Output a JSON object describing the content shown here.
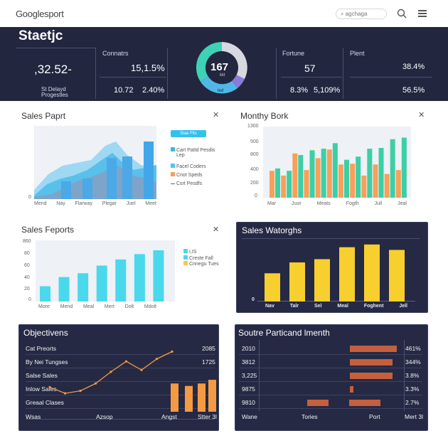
{
  "header": {
    "logo_text": "Googlesport",
    "search_placeholder": "agchaga"
  },
  "stats": {
    "title": "Staetjc",
    "value_main": ",32.52-",
    "sub_label_1": "St Delayd",
    "sub_label_2": "Progestles",
    "connats_label": "Connatrs",
    "connats_value": "15,1.5%",
    "connats_a": "10.72",
    "connats_b": "2.40%",
    "donut_value": "167",
    "donut_small": "kkt",
    "donut_inner": "ted",
    "fortune_label": "Fortune",
    "fortune_value": "57",
    "fortune_a": "8.3%",
    "fortune_b": "5,109%",
    "plent_label": "Plent",
    "plent_value": "38.4%",
    "plent_b": "56.5%"
  },
  "sales_report": {
    "title": "Sales Paprt",
    "legend_button": "Stae Flts",
    "legend": [
      {
        "label": "Cart Pattd Pesdis",
        "color": "#44b3e0"
      },
      {
        "label": "Lep",
        "color": ""
      },
      {
        "label": "Facel Coders",
        "color": "#4fc3f7"
      },
      {
        "label": "Cnot Speds",
        "color": "#f0a060"
      },
      {
        "label": "Csrt Pesdfs",
        "color": "#666666"
      }
    ],
    "x_labels": [
      "Mend",
      "Nay",
      "Flarway",
      "Plegar",
      "Juel",
      "Meet"
    ],
    "y_zero": "0"
  },
  "monthly_bork": {
    "title": "Monthy Bork",
    "y_labels": [
      "1300",
      "800",
      "500",
      "400",
      "200",
      "0"
    ],
    "x_labels": [
      "Mar",
      "Juor",
      "Meats",
      "Fogth",
      "Jull",
      "Jeal"
    ],
    "chart_data": {
      "type": "bar",
      "categories": [
        "1",
        "2",
        "3",
        "4",
        "5",
        "6",
        "7",
        "8",
        "9",
        "10",
        "11",
        "12"
      ],
      "series": [
        {
          "values": [
            340,
            280,
            560,
            350,
            500,
            610,
            420,
            430,
            280,
            420,
            300,
            350
          ]
        },
        {
          "values": [
            370,
            340,
            540,
            600,
            620,
            690,
            480,
            520,
            620,
            630,
            740,
            760
          ]
        }
      ],
      "ylim": [
        0,
        900
      ]
    }
  },
  "sales_fepotts": {
    "title": "Sales Feports",
    "y_labels": [
      "860",
      "80",
      "60",
      "40",
      "20",
      "0"
    ],
    "x_labels": [
      "More",
      "Mend",
      "Meal",
      "Mert",
      "Dolt",
      "Mdolt"
    ],
    "legend": [
      {
        "label": "I,IS",
        "color": "#4ad8ec"
      },
      {
        "label": "Creste Fall",
        "color": "#4ad8ec"
      },
      {
        "label": "Cnnegu Tues",
        "color": "#f7c94a"
      }
    ],
    "chart_data": {
      "type": "bar",
      "categories": [
        "1",
        "2",
        "3",
        "4",
        "5",
        "6",
        "7"
      ],
      "values": [
        20,
        32,
        37,
        47,
        55,
        62,
        67
      ],
      "ylim": [
        0,
        80
      ]
    }
  },
  "sales_watorghs": {
    "title": "Sales Watorghs",
    "y_zero": "0",
    "x_labels": [
      "Nav",
      "Talr",
      "Sel",
      "Meal",
      "Foghent",
      "Jell"
    ],
    "chart_data": {
      "type": "bar",
      "categories": [
        "Nav",
        "Talr",
        "Sel",
        "Meal",
        "Foghent",
        "Jell"
      ],
      "values": [
        52,
        72,
        78,
        100,
        105,
        95
      ],
      "ylim": [
        0,
        110
      ]
    }
  },
  "objectives": {
    "title": "Objectivens",
    "rows": [
      {
        "label": "Cat Preorts",
        "value": "2085"
      },
      {
        "label": "By Nei Tungses",
        "value": "1725"
      },
      {
        "label": "Salse Sales",
        "value": ""
      },
      {
        "label": "Inlow Sales",
        "value": ""
      },
      {
        "label": "Greaal Clases",
        "value": ""
      }
    ],
    "x_labels": [
      "Wsas",
      "Azsop",
      "Angst",
      "Stter 3l"
    ],
    "chart_data": {
      "type": "line",
      "line": [
        40,
        30,
        34,
        46,
        65,
        82,
        68,
        86,
        98
      ],
      "bars": [
        46,
        42,
        46,
        52
      ],
      "ylim": [
        0,
        110
      ]
    }
  },
  "soutre": {
    "title": "Soutre Particand lmenth",
    "rows": [
      {
        "label": "2010",
        "pct": "461%",
        "bar": 0.55
      },
      {
        "label": "3812",
        "pct": "344%",
        "bar": 0.5
      },
      {
        "label": "3,225",
        "pct": "3.8%",
        "bar": 0.5
      },
      {
        "label": "9875",
        "pct": "3.3%",
        "bar": 0.04
      },
      {
        "label": "9810",
        "pct": "2.7%",
        "bar": 0.25
      }
    ],
    "x_labels": [
      "Wane",
      "Tories",
      "Port",
      "Mert 3l"
    ]
  }
}
